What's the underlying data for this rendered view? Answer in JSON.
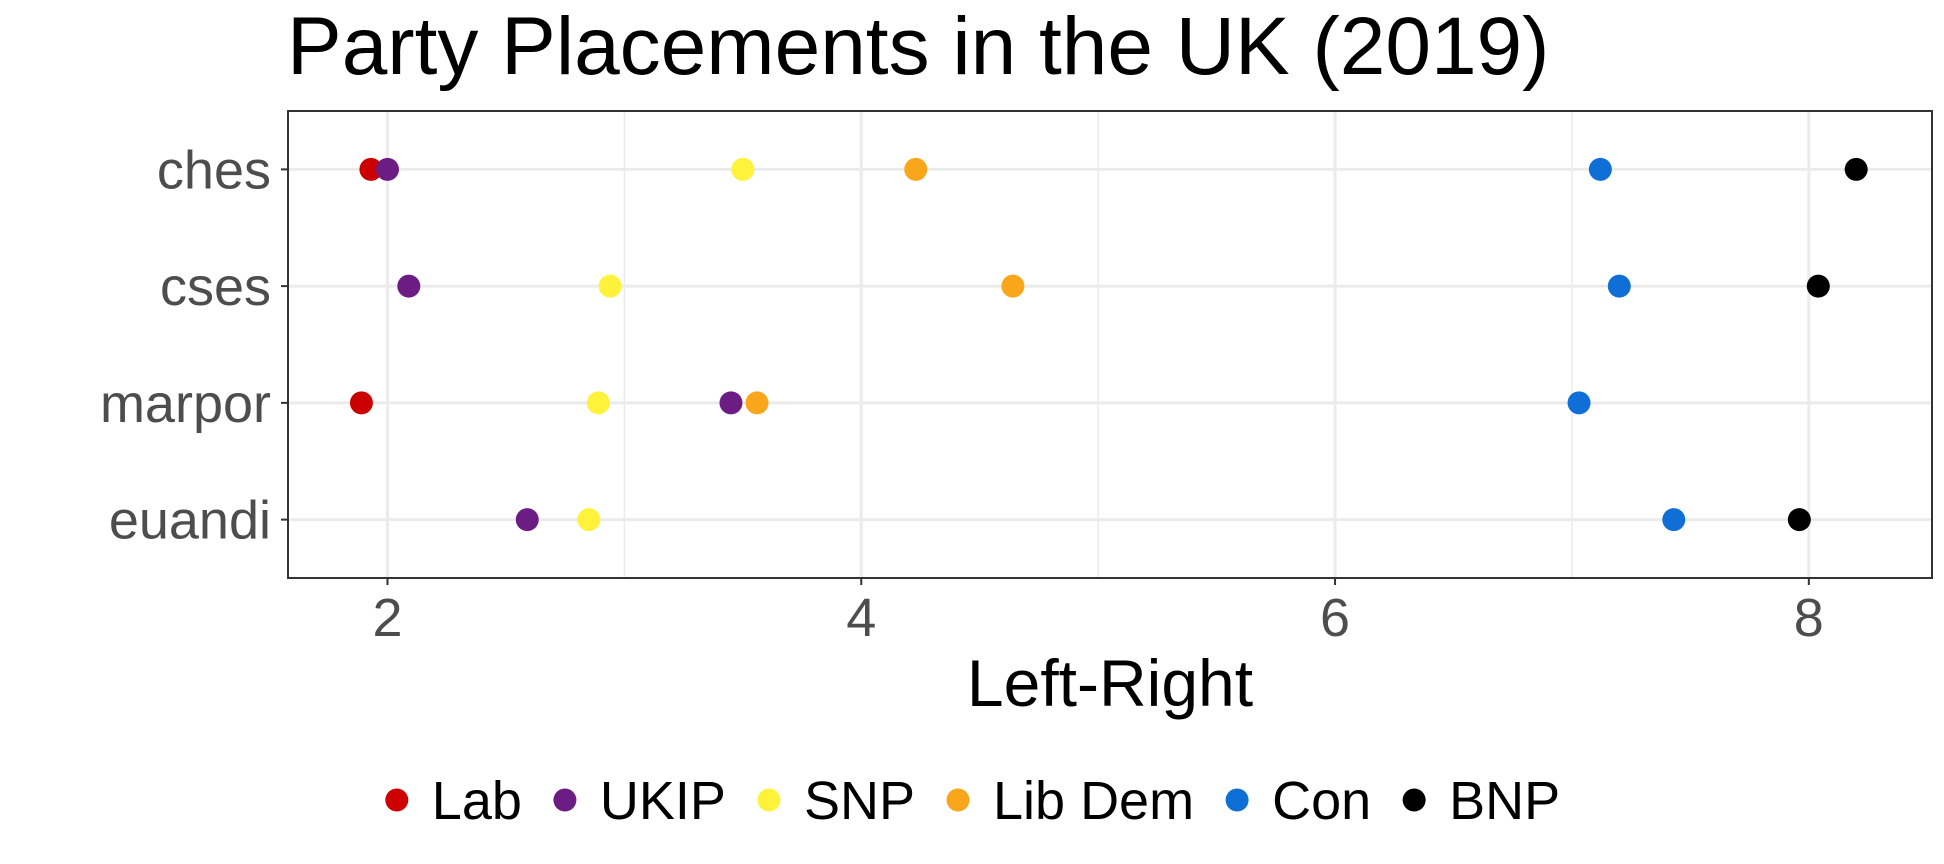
{
  "chart_data": {
    "type": "scatter",
    "title": "Party Placements in the UK (2019)",
    "xlabel": "Left-Right",
    "ylabel": "",
    "xlim": [
      1.58,
      8.52
    ],
    "x_ticks": [
      2,
      4,
      6,
      8
    ],
    "x_minor_ticks": [
      3,
      5,
      7
    ],
    "categories": [
      "ches",
      "cses",
      "marpor",
      "euandi"
    ],
    "grid": true,
    "legend_position": "bottom",
    "series": [
      {
        "name": "Lab",
        "color": "#cc0000",
        "values": [
          1.93,
          null,
          1.89,
          null
        ]
      },
      {
        "name": "UKIP",
        "color": "#6b1d83",
        "values": [
          2.0,
          2.09,
          3.45,
          2.59
        ]
      },
      {
        "name": "SNP",
        "color": "#fff23a",
        "values": [
          3.5,
          2.94,
          2.89,
          2.85
        ]
      },
      {
        "name": "Lib Dem",
        "color": "#faa61a",
        "values": [
          4.23,
          4.64,
          3.56,
          null
        ]
      },
      {
        "name": "Con",
        "color": "#0f6fd6",
        "values": [
          7.12,
          7.2,
          7.03,
          7.43
        ]
      },
      {
        "name": "BNP",
        "color": "#000000",
        "values": [
          8.2,
          8.04,
          null,
          7.96
        ]
      }
    ]
  }
}
